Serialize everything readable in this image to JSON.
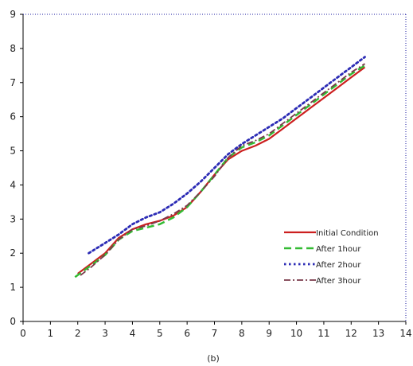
{
  "chart_data": {
    "type": "line",
    "caption": "(b)",
    "xlim": [
      0,
      14
    ],
    "ylim": [
      0,
      9
    ],
    "x_ticks": [
      0,
      1,
      2,
      3,
      4,
      5,
      6,
      7,
      8,
      9,
      10,
      11,
      12,
      13,
      14
    ],
    "y_ticks": [
      0,
      1,
      2,
      3,
      4,
      5,
      6,
      7,
      8,
      9
    ],
    "grid": false,
    "legend_position": "bottom-right",
    "series": [
      {
        "name": "Initial Condition",
        "color": "#cc1f1f",
        "dash": "solid",
        "points": [
          [
            2.0,
            1.4
          ],
          [
            2.5,
            1.7
          ],
          [
            3.0,
            2.0
          ],
          [
            3.5,
            2.45
          ],
          [
            4.0,
            2.7
          ],
          [
            4.5,
            2.85
          ],
          [
            5.0,
            2.95
          ],
          [
            5.5,
            3.1
          ],
          [
            6.0,
            3.35
          ],
          [
            6.5,
            3.8
          ],
          [
            7.0,
            4.3
          ],
          [
            7.5,
            4.75
          ],
          [
            8.0,
            5.0
          ],
          [
            8.5,
            5.15
          ],
          [
            9.0,
            5.35
          ],
          [
            9.5,
            5.65
          ],
          [
            10.0,
            5.95
          ],
          [
            10.5,
            6.25
          ],
          [
            11.0,
            6.55
          ],
          [
            11.5,
            6.85
          ],
          [
            12.0,
            7.15
          ],
          [
            12.5,
            7.45
          ]
        ]
      },
      {
        "name": "After 1hour",
        "color": "#33bb33",
        "dash": "long-dash",
        "points": [
          [
            1.9,
            1.3
          ],
          [
            2.5,
            1.65
          ],
          [
            3.0,
            1.95
          ],
          [
            3.5,
            2.4
          ],
          [
            4.0,
            2.65
          ],
          [
            4.5,
            2.75
          ],
          [
            5.0,
            2.85
          ],
          [
            5.5,
            3.05
          ],
          [
            6.0,
            3.35
          ],
          [
            6.5,
            3.8
          ],
          [
            7.0,
            4.3
          ],
          [
            7.5,
            4.8
          ],
          [
            8.0,
            5.1
          ],
          [
            8.5,
            5.25
          ],
          [
            9.0,
            5.45
          ],
          [
            9.5,
            5.75
          ],
          [
            10.0,
            6.05
          ],
          [
            10.5,
            6.35
          ],
          [
            11.0,
            6.65
          ],
          [
            11.5,
            6.95
          ],
          [
            12.0,
            7.25
          ],
          [
            12.5,
            7.5
          ]
        ]
      },
      {
        "name": "After 2hour",
        "color": "#2b2bb5",
        "dash": "dot",
        "points": [
          [
            2.4,
            2.0
          ],
          [
            3.0,
            2.3
          ],
          [
            3.5,
            2.55
          ],
          [
            4.0,
            2.85
          ],
          [
            4.5,
            3.05
          ],
          [
            5.0,
            3.2
          ],
          [
            5.5,
            3.45
          ],
          [
            6.0,
            3.75
          ],
          [
            6.5,
            4.1
          ],
          [
            7.0,
            4.5
          ],
          [
            7.5,
            4.9
          ],
          [
            8.0,
            5.2
          ],
          [
            8.5,
            5.45
          ],
          [
            9.0,
            5.7
          ],
          [
            9.5,
            5.95
          ],
          [
            10.0,
            6.25
          ],
          [
            10.5,
            6.55
          ],
          [
            11.0,
            6.85
          ],
          [
            11.5,
            7.15
          ],
          [
            12.0,
            7.45
          ],
          [
            12.5,
            7.75
          ]
        ]
      },
      {
        "name": "After 3hour",
        "color": "#7a3a4a",
        "dash": "dash-dot",
        "points": [
          [
            2.1,
            1.35
          ],
          [
            2.5,
            1.6
          ],
          [
            3.0,
            1.95
          ],
          [
            3.5,
            2.4
          ],
          [
            4.0,
            2.7
          ],
          [
            4.5,
            2.8
          ],
          [
            5.0,
            2.95
          ],
          [
            5.5,
            3.15
          ],
          [
            6.0,
            3.4
          ],
          [
            6.5,
            3.8
          ],
          [
            7.0,
            4.25
          ],
          [
            7.5,
            4.8
          ],
          [
            8.0,
            5.15
          ],
          [
            8.5,
            5.3
          ],
          [
            9.0,
            5.5
          ],
          [
            9.5,
            5.8
          ],
          [
            10.0,
            6.1
          ],
          [
            10.5,
            6.4
          ],
          [
            11.0,
            6.7
          ],
          [
            11.5,
            7.0
          ],
          [
            12.0,
            7.3
          ],
          [
            12.5,
            7.55
          ]
        ]
      }
    ]
  }
}
